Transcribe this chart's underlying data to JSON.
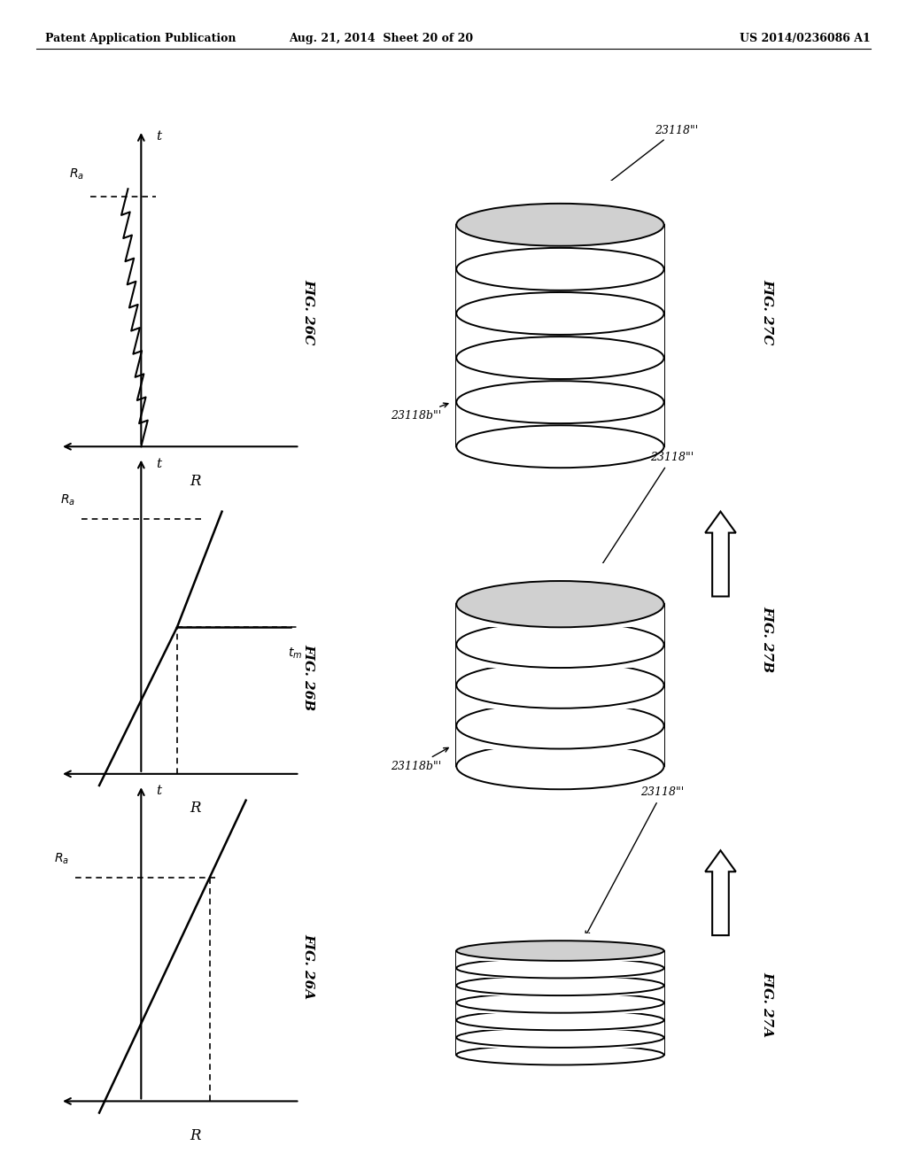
{
  "header_left": "Patent Application Publication",
  "header_mid": "Aug. 21, 2014  Sheet 20 of 20",
  "header_right": "US 2014/0236086 A1",
  "background": "#ffffff"
}
